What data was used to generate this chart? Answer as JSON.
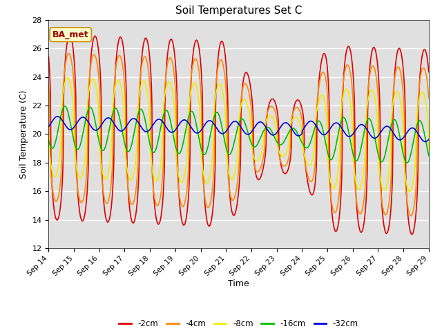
{
  "title": "Soil Temperatures Set C",
  "xlabel": "Time",
  "ylabel": "Soil Temperature (C)",
  "ylim": [
    12,
    28
  ],
  "xlim": [
    0,
    360
  ],
  "plot_bg_color": "#e0e0e0",
  "fig_bg_color": "#ffffff",
  "annotation_text": "BA_met",
  "annotation_box_facecolor": "#ffffcc",
  "annotation_box_edgecolor": "#cc8800",
  "series_colors": {
    "-2cm": "#dd0000",
    "-4cm": "#ff8800",
    "-8cm": "#eeee00",
    "-16cm": "#00bb00",
    "-32cm": "#0000dd"
  },
  "x_tick_labels": [
    "Sep 14",
    "Sep 15",
    "Sep 16",
    "Sep 17",
    "Sep 18",
    "Sep 19",
    "Sep 20",
    "Sep 21",
    "Sep 22",
    "Sep 23",
    "Sep 24",
    "Sep 25",
    "Sep 26",
    "Sep 27",
    "Sep 28",
    "Sep 29"
  ],
  "x_tick_positions": [
    0,
    24,
    48,
    72,
    96,
    120,
    144,
    168,
    192,
    216,
    240,
    264,
    288,
    312,
    336,
    360
  ],
  "y_tick_positions": [
    12,
    14,
    16,
    18,
    20,
    22,
    24,
    26,
    28
  ],
  "line_width": 1.2,
  "grid_color": "#ffffff",
  "grid_linewidth": 1.0
}
